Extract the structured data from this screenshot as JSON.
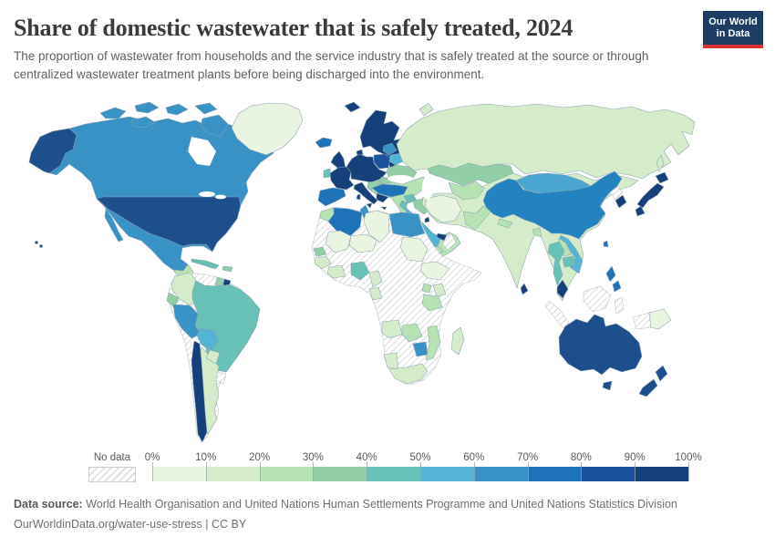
{
  "header": {
    "title": "Share of domestic wastewater that is safely treated, 2024",
    "subtitle": "The proportion of wastewater from households and the service industry that is safely treated at the source or through centralized wastewater treatment plants before being discharged into the environment.",
    "logo": {
      "line1": "Our World",
      "line2": "in Data",
      "bg_color": "#1d3d63",
      "accent_color": "#dc3232"
    }
  },
  "legend": {
    "no_data_label": "No data",
    "tick_labels": [
      "0%",
      "10%",
      "20%",
      "30%",
      "40%",
      "50%",
      "60%",
      "70%",
      "80%",
      "90%",
      "100%"
    ],
    "bin_colors": [
      "#e9f5e1",
      "#d4ecca",
      "#b7e2b4",
      "#92cfa7",
      "#67c1b6",
      "#55b4d5",
      "#3892c5",
      "#1e73b8",
      "#1b529b",
      "#16407a"
    ]
  },
  "footer": {
    "source_label": "Data source:",
    "source_text": " World Health Organisation and United Nations Human Settlements Programme and United Nations Statistics Division",
    "citation": "OurWorldinData.org/water-use-stress | CC BY"
  },
  "chart_data": {
    "type": "choropleth-map (heatmap on world map)",
    "title": "Share of domestic wastewater that is safely treated, 2024",
    "unit": "%",
    "year": 2024,
    "bins": [
      {
        "range": "0-10%",
        "color": "#e9f5e1"
      },
      {
        "range": "10-20%",
        "color": "#d4ecca"
      },
      {
        "range": "20-30%",
        "color": "#b7e2b4"
      },
      {
        "range": "30-40%",
        "color": "#92cfa7"
      },
      {
        "range": "40-50%",
        "color": "#67c1b6"
      },
      {
        "range": "50-60%",
        "color": "#55b4d5"
      },
      {
        "range": "60-70%",
        "color": "#3892c5"
      },
      {
        "range": "70-80%",
        "color": "#1e73b8"
      },
      {
        "range": "80-90%",
        "color": "#1b529b"
      },
      {
        "range": "90-100%",
        "color": "#16407a"
      },
      {
        "range": "No data",
        "color": "hatched"
      }
    ],
    "no_data_fill": "url(#hatch)",
    "no_data_regions": [
      "Venezuela",
      "Uruguay",
      "Western Sahara",
      "Mauritania",
      "Chad",
      "Somalia",
      "DR Congo",
      "Central African Republic",
      "Botswana",
      "Oman",
      "North Korea",
      "Indonesia",
      "Honduras"
    ],
    "countries": {
      "greenland": {
        "label": "Greenland",
        "range": "0-10%",
        "color": "#e9f5e1"
      },
      "canada": {
        "label": "Canada",
        "range": "60-70%",
        "color": "#3892c5"
      },
      "usa": {
        "label": "United States",
        "range": "80-90%",
        "color": "#1d4f8c"
      },
      "mexico": {
        "label": "Mexico",
        "range": "60-70%",
        "color": "#3892c5"
      },
      "central_america": {
        "label": "Central America",
        "range": "20-30%",
        "color": "#b7e2b4"
      },
      "panama": {
        "label": "Panama",
        "range": "40-50%",
        "color": "#67c1b6"
      },
      "cuba": {
        "label": "Cuba",
        "range": "40-50%",
        "color": "#67c1b6"
      },
      "hispaniola": {
        "label": "Dominican Republic",
        "range": "30-40%",
        "color": "#92cfa7"
      },
      "colombia": {
        "label": "Colombia",
        "range": "10-20%",
        "color": "#d4ecca"
      },
      "guyana": {
        "label": "Guyana",
        "range": "30-40%",
        "color": "#92cfa7"
      },
      "suriname": {
        "label": "Suriname",
        "range": "90-100%",
        "color": "#16407a"
      },
      "ecuador": {
        "label": "Ecuador",
        "range": "30-40%",
        "color": "#92cfa7"
      },
      "peru": {
        "label": "Peru",
        "range": "60-70%",
        "color": "#3892c5"
      },
      "bolivia": {
        "label": "Bolivia",
        "range": "50-60%",
        "color": "#55b4d5"
      },
      "brazil": {
        "label": "Brazil",
        "range": "40-50%",
        "color": "#67c1b6"
      },
      "paraguay": {
        "label": "Paraguay",
        "range": "10-20%",
        "color": "#d4ecca"
      },
      "argentina": {
        "label": "Argentina",
        "range": "10-20%",
        "color": "#d4ecca"
      },
      "chile": {
        "label": "Chile",
        "range": "90-100%",
        "color": "#16407a"
      },
      "iceland": {
        "label": "Iceland",
        "range": "70-80%",
        "color": "#1e73b8"
      },
      "uk": {
        "label": "United Kingdom",
        "range": "90-100%",
        "color": "#16407a"
      },
      "ireland": {
        "label": "Ireland",
        "range": "40-50%",
        "color": "#67c1b6"
      },
      "scandinavia": {
        "label": "Norway / Sweden / Finland",
        "range": "90-100%",
        "color": "#16407a"
      },
      "france": {
        "label": "France",
        "range": "90-100%",
        "color": "#16407a"
      },
      "central_europe": {
        "label": "Germany & Central Europe",
        "range": "90-100%",
        "color": "#16407a"
      },
      "iberia": {
        "label": "Spain & Portugal",
        "range": "70-80%",
        "color": "#1e73b8"
      },
      "italy": {
        "label": "Italy",
        "range": "90-100%",
        "color": "#16407a"
      },
      "poland": {
        "label": "Poland",
        "range": "80-90%",
        "color": "#1b529b"
      },
      "baltics": {
        "label": "Baltic states",
        "range": "60-70%",
        "color": "#3892c5"
      },
      "belarus": {
        "label": "Belarus",
        "range": "50-60%",
        "color": "#55b4d5"
      },
      "ukraine": {
        "label": "Ukraine",
        "range": "30-40%",
        "color": "#92cfa7"
      },
      "romania": {
        "label": "Romania",
        "range": "30-40%",
        "color": "#92cfa7"
      },
      "bulgaria": {
        "label": "Bulgaria",
        "range": "60-70%",
        "color": "#3892c5"
      },
      "balkans": {
        "label": "Western Balkans",
        "range": "30-40%",
        "color": "#92cfa7"
      },
      "greece": {
        "label": "Greece",
        "range": "90-100%",
        "color": "#16407a"
      },
      "russia": {
        "label": "Russia",
        "range": "10-20%",
        "color": "#d4ecca"
      },
      "kazakhstan": {
        "label": "Kazakhstan",
        "range": "30-40%",
        "color": "#92cfa7"
      },
      "central_asia": {
        "label": "Central Asia",
        "range": "20-30%",
        "color": "#b7e2b4"
      },
      "turkey": {
        "label": "Turkey",
        "range": "70-80%",
        "color": "#1e73b8"
      },
      "syria": {
        "label": "Syria",
        "range": "40-50%",
        "color": "#67c1b6"
      },
      "iraq": {
        "label": "Iraq",
        "range": "30-40%",
        "color": "#92cfa7"
      },
      "jordan_israel": {
        "label": "Jordan / Israel",
        "range": "40-50%",
        "color": "#67c1b6"
      },
      "iran": {
        "label": "Iran",
        "range": "0-10%",
        "color": "#e9f5e1"
      },
      "saudi_arabia": {
        "label": "Saudi Arabia",
        "range": "50-60%",
        "color": "#55b4d5"
      },
      "yemen": {
        "label": "Yemen",
        "range": "20-30%",
        "color": "#b7e2b4"
      },
      "uae": {
        "label": "United Arab Emirates",
        "range": "90-100%",
        "color": "#16407a"
      },
      "kuwait": {
        "label": "Kuwait",
        "range": "90-100%",
        "color": "#16407a"
      },
      "afghanistan": {
        "label": "Afghanistan",
        "range": "10-20%",
        "color": "#d4ecca"
      },
      "pakistan": {
        "label": "Pakistan",
        "range": "20-30%",
        "color": "#b7e2b4"
      },
      "india": {
        "label": "India",
        "range": "10-20%",
        "color": "#d4ecca"
      },
      "nepal": {
        "label": "Nepal",
        "range": "20-30%",
        "color": "#b7e2b4"
      },
      "bangladesh": {
        "label": "Bangladesh",
        "range": "20-30%",
        "color": "#b7e2b4"
      },
      "sri_lanka": {
        "label": "Sri Lanka",
        "range": "90-100%",
        "color": "#16407a"
      },
      "myanmar": {
        "label": "Myanmar",
        "range": "10-20%",
        "color": "#d4ecca"
      },
      "thailand": {
        "label": "Thailand",
        "range": "40-50%",
        "color": "#67c1b6"
      },
      "laos": {
        "label": "Laos",
        "range": "20-30%",
        "color": "#b7e2b4"
      },
      "cambodia": {
        "label": "Cambodia",
        "range": "40-50%",
        "color": "#67c1b6"
      },
      "vietnam": {
        "label": "Vietnam",
        "range": "50-60%",
        "color": "#55b4d5"
      },
      "malaysia": {
        "label": "Malaysia",
        "range": "90-100%",
        "color": "#16407a"
      },
      "philippines": {
        "label": "Philippines",
        "range": "70-80%",
        "color": "#1e73b8"
      },
      "china": {
        "label": "China",
        "range": "70-80%",
        "color": "#2382c0"
      },
      "mongolia": {
        "label": "Mongolia",
        "range": "50-60%",
        "color": "#4ba6d2"
      },
      "south_korea": {
        "label": "South Korea",
        "range": "90-100%",
        "color": "#16407a"
      },
      "japan": {
        "label": "Japan",
        "range": "90-100%",
        "color": "#16407a"
      },
      "taiwan": {
        "label": "Taiwan",
        "range": "70-80%",
        "color": "#1e73b8"
      },
      "png": {
        "label": "Papua New Guinea",
        "range": "0-10%",
        "color": "#e9f5e1"
      },
      "australia": {
        "label": "Australia",
        "range": "80-90%",
        "color": "#1d4f8c"
      },
      "new_zealand": {
        "label": "New Zealand",
        "range": "80-90%",
        "color": "#1d4f8c"
      },
      "morocco": {
        "label": "Morocco",
        "range": "20-30%",
        "color": "#b7e2b4"
      },
      "algeria": {
        "label": "Algeria",
        "range": "70-80%",
        "color": "#1e73b8"
      },
      "tunisia": {
        "label": "Tunisia",
        "range": "60-70%",
        "color": "#3892c5"
      },
      "libya": {
        "label": "Libya",
        "range": "0-10%",
        "color": "#e9f5e1"
      },
      "egypt": {
        "label": "Egypt",
        "range": "60-70%",
        "color": "#3892c5"
      },
      "mali": {
        "label": "Mali",
        "range": "0-10%",
        "color": "#e9f5e1"
      },
      "niger": {
        "label": "Niger",
        "range": "0-10%",
        "color": "#e9f5e1"
      },
      "sudan": {
        "label": "Sudan",
        "range": "0-10%",
        "color": "#e9f5e1"
      },
      "ethiopia": {
        "label": "Ethiopia",
        "range": "0-10%",
        "color": "#e9f5e1"
      },
      "senegal": {
        "label": "Senegal",
        "range": "30-40%",
        "color": "#92cfa7"
      },
      "guinea": {
        "label": "Guinea region",
        "range": "10-20%",
        "color": "#d4ecca"
      },
      "ghana": {
        "label": "Ghana / Côte d'Ivoire",
        "range": "10-20%",
        "color": "#d4ecca"
      },
      "nigeria": {
        "label": "Nigeria",
        "range": "40-50%",
        "color": "#67c1b6"
      },
      "cameroon": {
        "label": "Cameroon",
        "range": "10-20%",
        "color": "#d4ecca"
      },
      "congo": {
        "label": "Congo / Gabon",
        "range": "10-20%",
        "color": "#d4ecca"
      },
      "uganda": {
        "label": "Uganda",
        "range": "20-30%",
        "color": "#b7e2b4"
      },
      "kenya": {
        "label": "Kenya",
        "range": "10-20%",
        "color": "#d4ecca"
      },
      "tanzania": {
        "label": "Tanzania",
        "range": "20-30%",
        "color": "#b7e2b4"
      },
      "angola": {
        "label": "Angola",
        "range": "10-20%",
        "color": "#d4ecca"
      },
      "zambia": {
        "label": "Zambia",
        "range": "20-30%",
        "color": "#b7e2b4"
      },
      "zimbabwe": {
        "label": "Zimbabwe",
        "range": "60-70%",
        "color": "#3892c5"
      },
      "mozambique": {
        "label": "Mozambique",
        "range": "20-30%",
        "color": "#b7e2b4"
      },
      "namibia": {
        "label": "Namibia",
        "range": "10-20%",
        "color": "#d4ecca"
      },
      "south_africa": {
        "label": "South Africa",
        "range": "10-20%",
        "color": "#d4ecca"
      },
      "madagascar": {
        "label": "Madagascar",
        "range": "10-20%",
        "color": "#d4ecca"
      }
    }
  }
}
